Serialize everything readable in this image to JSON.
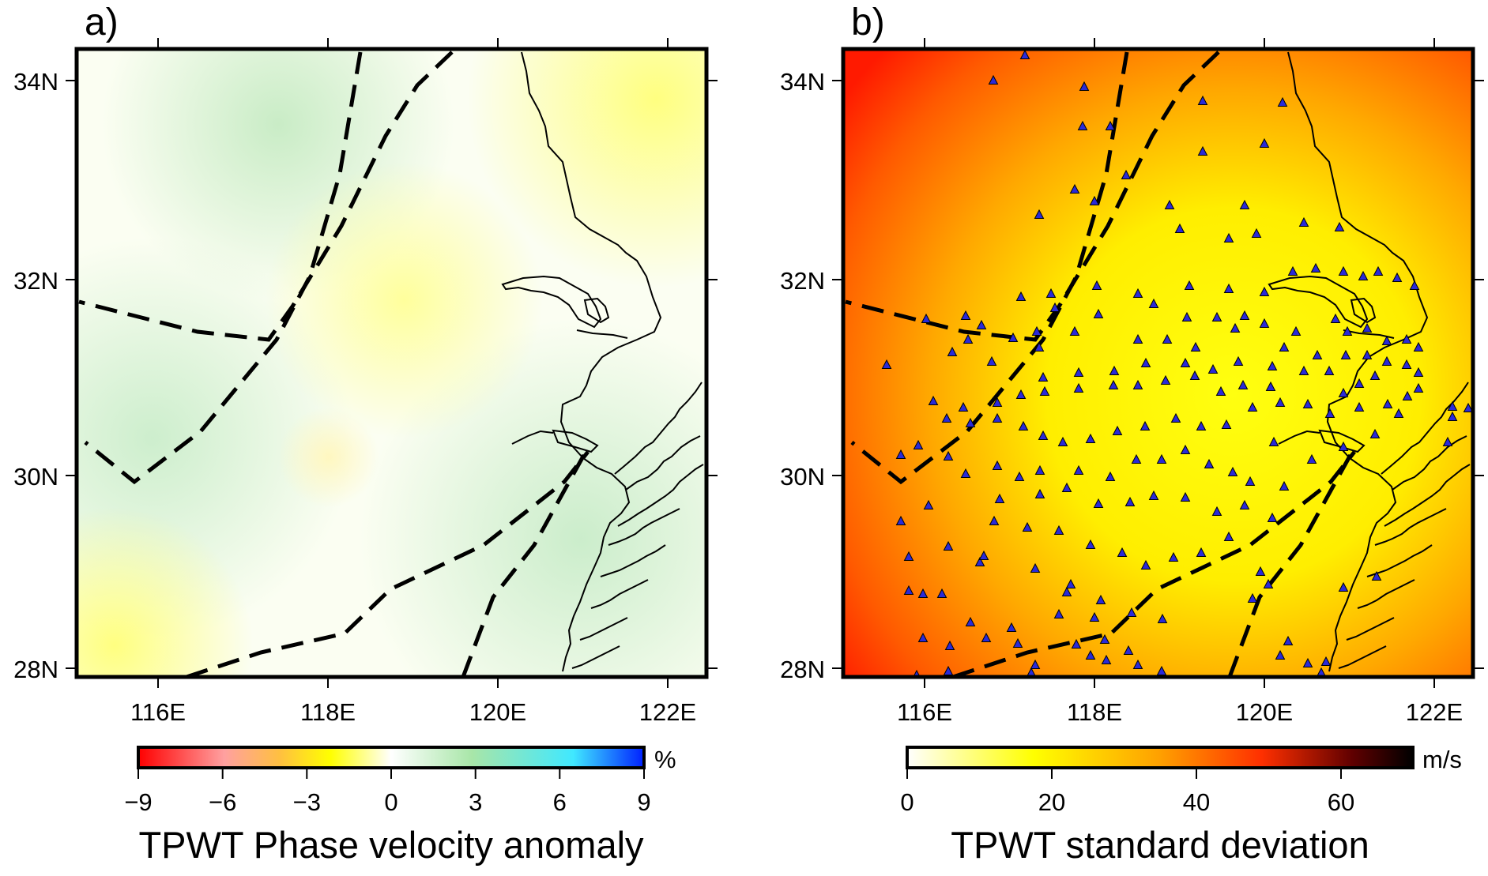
{
  "panel_a": {
    "label": "a)",
    "x_ticks": [
      "116E",
      "118E",
      "120E",
      "122E"
    ],
    "y_ticks": [
      "28N",
      "30N",
      "32N",
      "34N"
    ],
    "colorbar": {
      "tick_labels": [
        "−9",
        "−6",
        "−3",
        "0",
        "3",
        "6",
        "9"
      ],
      "unit": "%",
      "title": "TPWT Phase velocity anomaly",
      "colors": [
        "#ff0000",
        "#ffa0a0",
        "#ffc040",
        "#ffff00",
        "#ffffff",
        "#a8e6a8",
        "#40e8ff",
        "#0020ff"
      ]
    }
  },
  "panel_b": {
    "label": "b)",
    "x_ticks": [
      "116E",
      "118E",
      "120E",
      "122E"
    ],
    "y_ticks": [
      "28N",
      "30N",
      "32N",
      "34N"
    ],
    "stations_symbol": "blue-triangle-icon",
    "colorbar": {
      "tick_labels": [
        "0",
        "20",
        "40",
        "60"
      ],
      "unit": "m/s",
      "title": "TPWT standard deviation",
      "colors": [
        "#ffffff",
        "#ffff00",
        "#ffa000",
        "#ff3000",
        "#600000",
        "#000000"
      ]
    }
  },
  "chart_data": [
    {
      "type": "heatmap",
      "panel": "a)",
      "xlim": [
        115.0,
        122.5
      ],
      "ylim": [
        27.9,
        34.3
      ],
      "x_ticks": [
        116,
        118,
        120,
        122
      ],
      "y_ticks": [
        28,
        30,
        32,
        34
      ],
      "colorbar_range": [
        -9,
        9
      ],
      "colorbar_unit": "%",
      "colorbar_title": "TPWT Phase velocity anomaly"
    },
    {
      "type": "heatmap",
      "panel": "b)",
      "xlim": [
        115.0,
        122.5
      ],
      "ylim": [
        27.9,
        34.3
      ],
      "x_ticks": [
        116,
        118,
        120,
        122
      ],
      "y_ticks": [
        28,
        30,
        32,
        34
      ],
      "colorbar_range": [
        0,
        70
      ],
      "colorbar_unit": "m/s",
      "colorbar_title": "TPWT standard deviation"
    }
  ]
}
